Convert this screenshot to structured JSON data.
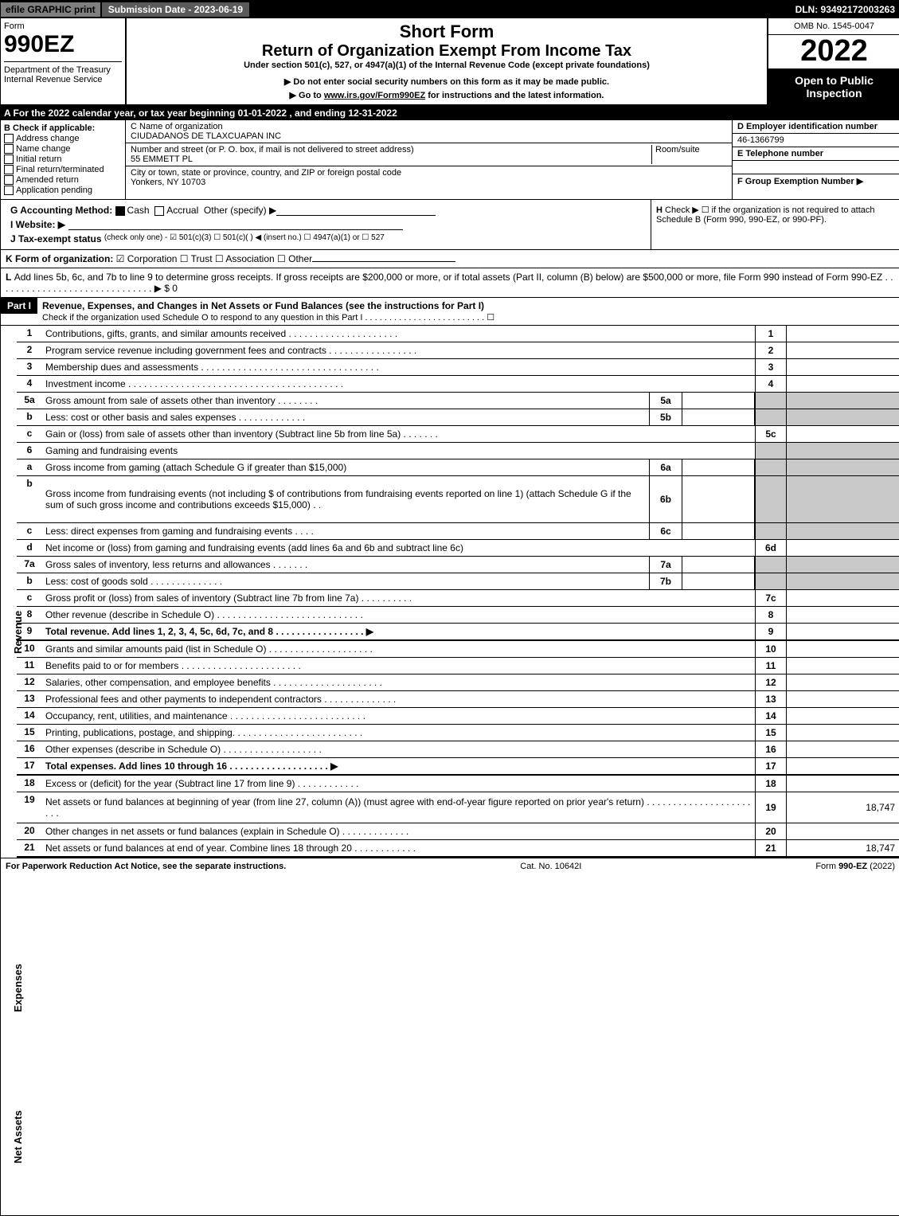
{
  "topbar": {
    "efile": "efile GRAPHIC print",
    "subdate": "Submission Date - 2023-06-19",
    "dln": "DLN: 93492172003263"
  },
  "header": {
    "form": "Form",
    "num": "990EZ",
    "dept": "Department of the Treasury\nInternal Revenue Service",
    "shortform": "Short Form",
    "return": "Return of Organization Exempt From Income Tax",
    "sub": "Under section 501(c), 527, or 4947(a)(1) of the Internal Revenue Code (except private foundations)",
    "note": "▶ Do not enter social security numbers on this form as it may be made public.",
    "goto_pre": "▶ Go to ",
    "goto_link": "www.irs.gov/Form990EZ",
    "goto_post": " for instructions and the latest information.",
    "omb": "OMB No. 1545-0047",
    "year": "2022",
    "open": "Open to Public Inspection"
  },
  "A": "A  For the 2022 calendar year, or tax year beginning 01-01-2022 , and ending 12-31-2022",
  "B": {
    "label": "B  Check if applicable:",
    "items": [
      "Address change",
      "Name change",
      "Initial return",
      "Final return/terminated",
      "Amended return",
      "Application pending"
    ]
  },
  "C": {
    "name_lbl": "C Name of organization",
    "name": "CIUDADANOS DE TLAXCUAPAN INC",
    "street_lbl": "Number and street (or P. O. box, if mail is not delivered to street address)",
    "room_lbl": "Room/suite",
    "street": "55 EMMETT PL",
    "city_lbl": "City or town, state or province, country, and ZIP or foreign postal code",
    "city": "Yonkers, NY  10703"
  },
  "D": {
    "lbl": "D Employer identification number",
    "val": "46-1366799"
  },
  "E": {
    "lbl": "E Telephone number"
  },
  "F": {
    "lbl": "F Group Exemption Number  ▶"
  },
  "G": {
    "lbl": "G Accounting Method:",
    "cash": "Cash",
    "accrual": "Accrual",
    "other": "Other (specify) ▶"
  },
  "H": {
    "lbl": "H",
    "txt": "Check ▶  ☐  if the organization is not required to attach Schedule B (Form 990, 990-EZ, or 990-PF)."
  },
  "I": {
    "lbl": "I Website: ▶"
  },
  "J": {
    "lbl": "J Tax-exempt status",
    "txt": "(check only one) - ☑ 501(c)(3)  ☐ 501(c)(  ) ◀ (insert no.)  ☐ 4947(a)(1) or  ☐ 527"
  },
  "K": {
    "lbl": "K Form of organization:",
    "txt": "☑ Corporation  ☐ Trust  ☐ Association  ☐ Other"
  },
  "L": {
    "lbl": "L",
    "txt": "Add lines 5b, 6c, and 7b to line 9 to determine gross receipts. If gross receipts are $200,000 or more, or if total assets (Part II, column (B) below) are $500,000 or more, file Form 990 instead of Form 990-EZ . . . . . . . . . . . . . . . . . . . . . . . . . . . . . . ▶ $ 0"
  },
  "part1": {
    "label": "Part I",
    "title": "Revenue, Expenses, and Changes in Net Assets or Fund Balances (see the instructions for Part I)",
    "sub": "Check if the organization used Schedule O to respond to any question in this Part I . . . . . . . . . . . . . . . . . . . . . . . . . ☐"
  },
  "lines": {
    "1": {
      "n": "1",
      "d": "Contributions, gifts, grants, and similar amounts received  . . . . . . . . . . . . . . . . . . . . .",
      "r": "1"
    },
    "2": {
      "n": "2",
      "d": "Program service revenue including government fees and contracts  . . . . . . . . . . . . . . . . .",
      "r": "2"
    },
    "3": {
      "n": "3",
      "d": "Membership dues and assessments  . . . . . . . . . . . . . . . . . . . . . . . . . . . . . . . . . .",
      "r": "3"
    },
    "4": {
      "n": "4",
      "d": "Investment income  . . . . . . . . . . . . . . . . . . . . . . . . . . . . . . . . . . . . . . . . .",
      "r": "4"
    },
    "5a": {
      "n": "5a",
      "d": "Gross amount from sale of assets other than inventory  . . . . . . . .",
      "s": "5a"
    },
    "5b": {
      "n": "b",
      "d": "Less: cost or other basis and sales expenses  . . . . . . . . . . . . .",
      "s": "5b"
    },
    "5c": {
      "n": "c",
      "d": "Gain or (loss) from sale of assets other than inventory (Subtract line 5b from line 5a)  . . . . . . .",
      "r": "5c"
    },
    "6": {
      "n": "6",
      "d": "Gaming and fundraising events"
    },
    "6a": {
      "n": "a",
      "d": "Gross income from gaming (attach Schedule G if greater than $15,000)",
      "s": "6a"
    },
    "6b": {
      "n": "b",
      "d": "Gross income from fundraising events (not including $                      of contributions from fundraising events reported on line 1) (attach Schedule G if the sum of such gross income and contributions exceeds $15,000)    .   .",
      "s": "6b"
    },
    "6c": {
      "n": "c",
      "d": "Less: direct expenses from gaming and fundraising events   . . . .",
      "s": "6c"
    },
    "6d": {
      "n": "d",
      "d": "Net income or (loss) from gaming and fundraising events (add lines 6a and 6b and subtract line 6c)",
      "r": "6d"
    },
    "7a": {
      "n": "7a",
      "d": "Gross sales of inventory, less returns and allowances  . . . . . . .",
      "s": "7a"
    },
    "7b": {
      "n": "b",
      "d": "Less: cost of goods sold           .   .   .   .   .   .   .   .   .   .   .   .   .   .",
      "s": "7b"
    },
    "7c": {
      "n": "c",
      "d": "Gross profit or (loss) from sales of inventory (Subtract line 7b from line 7a)  . . . . . . . . . .",
      "r": "7c"
    },
    "8": {
      "n": "8",
      "d": "Other revenue (describe in Schedule O)  . . . . . . . . . . . . . . . . . . . . . . . . . . . .",
      "r": "8"
    },
    "9": {
      "n": "9",
      "d": "Total revenue. Add lines 1, 2, 3, 4, 5c, 6d, 7c, and 8   .   .   .   .   .   .   .   .   .   .   .   .   .   .   .   .   .   ▶",
      "r": "9",
      "bold": true
    },
    "10": {
      "n": "10",
      "d": "Grants and similar amounts paid (list in Schedule O)  . . . . . . . . . . . . . . . . . . . .",
      "r": "10"
    },
    "11": {
      "n": "11",
      "d": "Benefits paid to or for members      .   .   .   .   .   .   .   .   .   .   .   .   .   .   .   .   .   .   .   .   .   .   .",
      "r": "11"
    },
    "12": {
      "n": "12",
      "d": "Salaries, other compensation, and employee benefits . . . . . . . . . . . . . . . . . . . . .",
      "r": "12"
    },
    "13": {
      "n": "13",
      "d": "Professional fees and other payments to independent contractors  . . . . . . . . . . . . . .",
      "r": "13"
    },
    "14": {
      "n": "14",
      "d": "Occupancy, rent, utilities, and maintenance . . . . . . . . . . . . . . . . . . . . . . . . . .",
      "r": "14"
    },
    "15": {
      "n": "15",
      "d": "Printing, publications, postage, and shipping.  . . . . . . . . . . . . . . . . . . . . . . . .",
      "r": "15"
    },
    "16": {
      "n": "16",
      "d": "Other expenses (describe in Schedule O)     .   .   .   .   .   .   .   .   .   .   .   .   .   .   .   .   .   .   .",
      "r": "16"
    },
    "17": {
      "n": "17",
      "d": "Total expenses. Add lines 10 through 16      .   .   .   .   .   .   .   .   .   .   .   .   .   .   .   .   .   .   .   ▶",
      "r": "17",
      "bold": true
    },
    "18": {
      "n": "18",
      "d": "Excess or (deficit) for the year (Subtract line 17 from line 9)         .   .   .   .   .   .   .   .   .   .   .   .",
      "r": "18"
    },
    "19": {
      "n": "19",
      "d": "Net assets or fund balances at beginning of year (from line 27, column (A)) (must agree with end-of-year figure reported on prior year's return) . . . . . . . . . . . . . . . . . . . . . . .",
      "r": "19",
      "amt": "18,747"
    },
    "20": {
      "n": "20",
      "d": "Other changes in net assets or fund balances (explain in Schedule O) . . . . . . . . . . . . .",
      "r": "20"
    },
    "21": {
      "n": "21",
      "d": "Net assets or fund balances at end of year. Combine lines 18 through 20 . . . . . . . . . . . .",
      "r": "21",
      "amt": "18,747"
    }
  },
  "sidetabs": {
    "rev": "Revenue",
    "exp": "Expenses",
    "na": "Net Assets"
  },
  "footer": {
    "left": "For Paperwork Reduction Act Notice, see the separate instructions.",
    "mid": "Cat. No. 10642I",
    "right": "Form 990-EZ (2022)"
  }
}
